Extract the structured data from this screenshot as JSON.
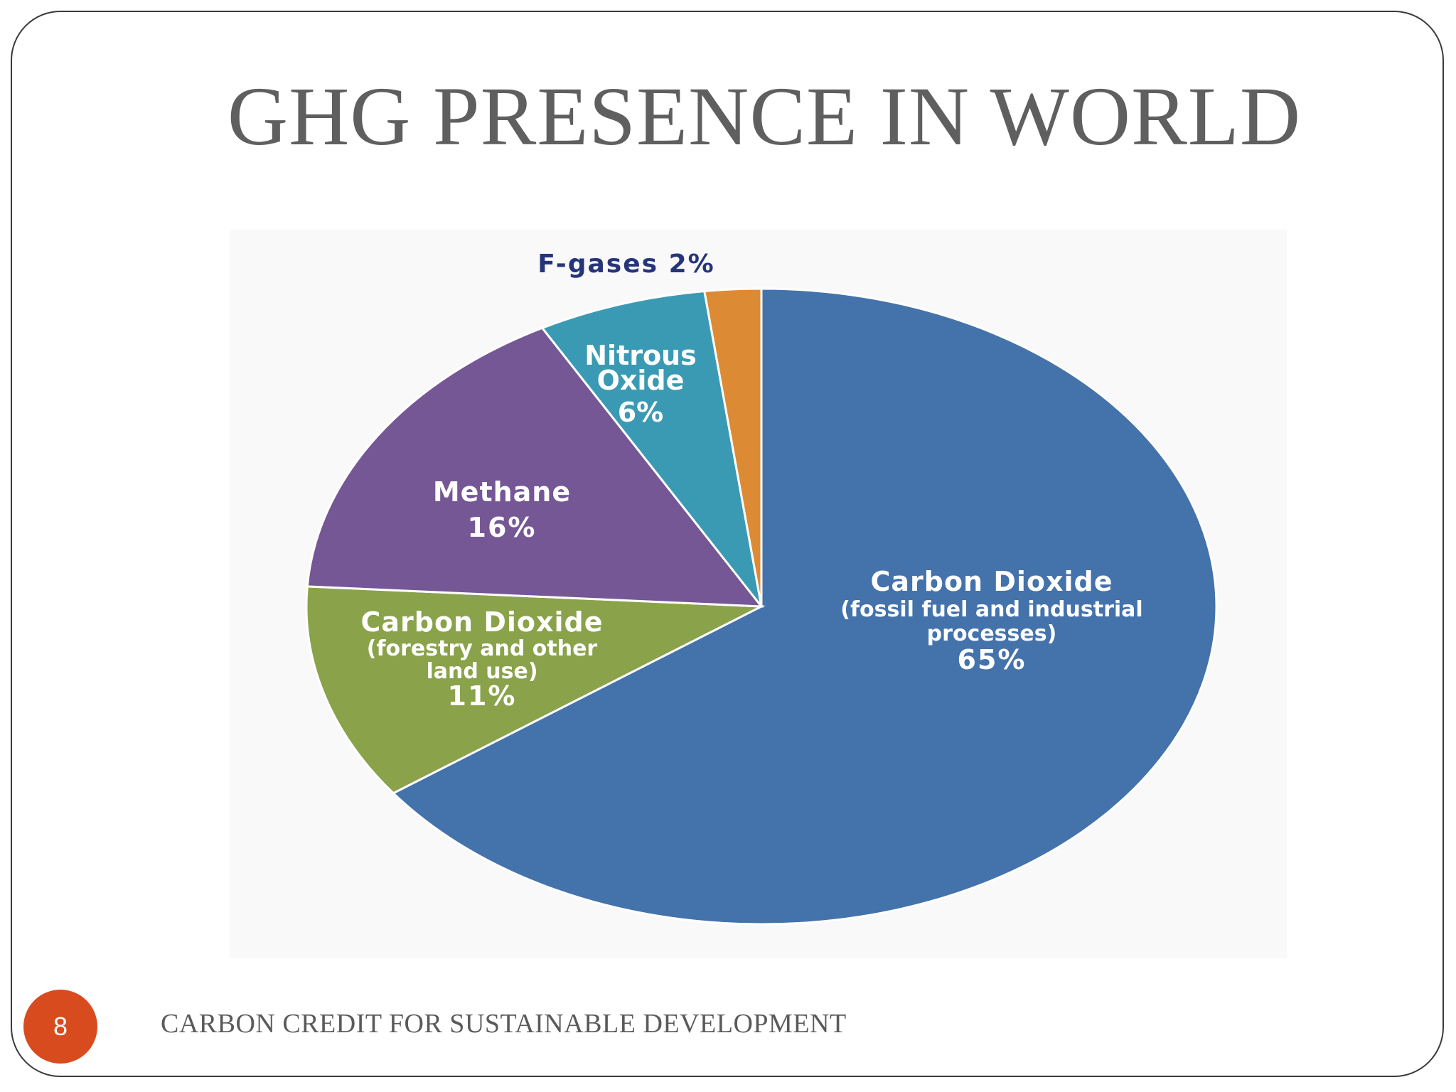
{
  "slide": {
    "title": "GHG PRESENCE IN WORLD",
    "page_number": "8",
    "footer": "CARBON CREDIT FOR SUSTAINABLE DEVELOPMENT"
  },
  "chart_data": {
    "type": "pie",
    "title": "",
    "slices": [
      {
        "name": "Carbon Dioxide",
        "sublabel": [
          "(fossil fuel and industrial",
          "processes)"
        ],
        "value": 65,
        "value_label": "65%",
        "color": "#4472ab",
        "label_color": "#ffffff"
      },
      {
        "name": "Carbon Dioxide",
        "sublabel": [
          "(forestry and other",
          "land use)"
        ],
        "value": 11,
        "value_label": "11%",
        "color": "#8aa24a",
        "label_color": "#ffffff"
      },
      {
        "name": "Methane",
        "sublabel": [],
        "value": 16,
        "value_label": "16%",
        "color": "#755795",
        "label_color": "#ffffff"
      },
      {
        "name": "Nitrous Oxide",
        "sublabel": [],
        "value": 6,
        "value_label": "6%",
        "color": "#3b9ab3",
        "label_color": "#ffffff"
      },
      {
        "name": "F-gases",
        "sublabel": [],
        "value": 2,
        "value_label": "2%",
        "color": "#dd8a35",
        "label_color": "#26357a"
      }
    ],
    "legend": "none"
  }
}
